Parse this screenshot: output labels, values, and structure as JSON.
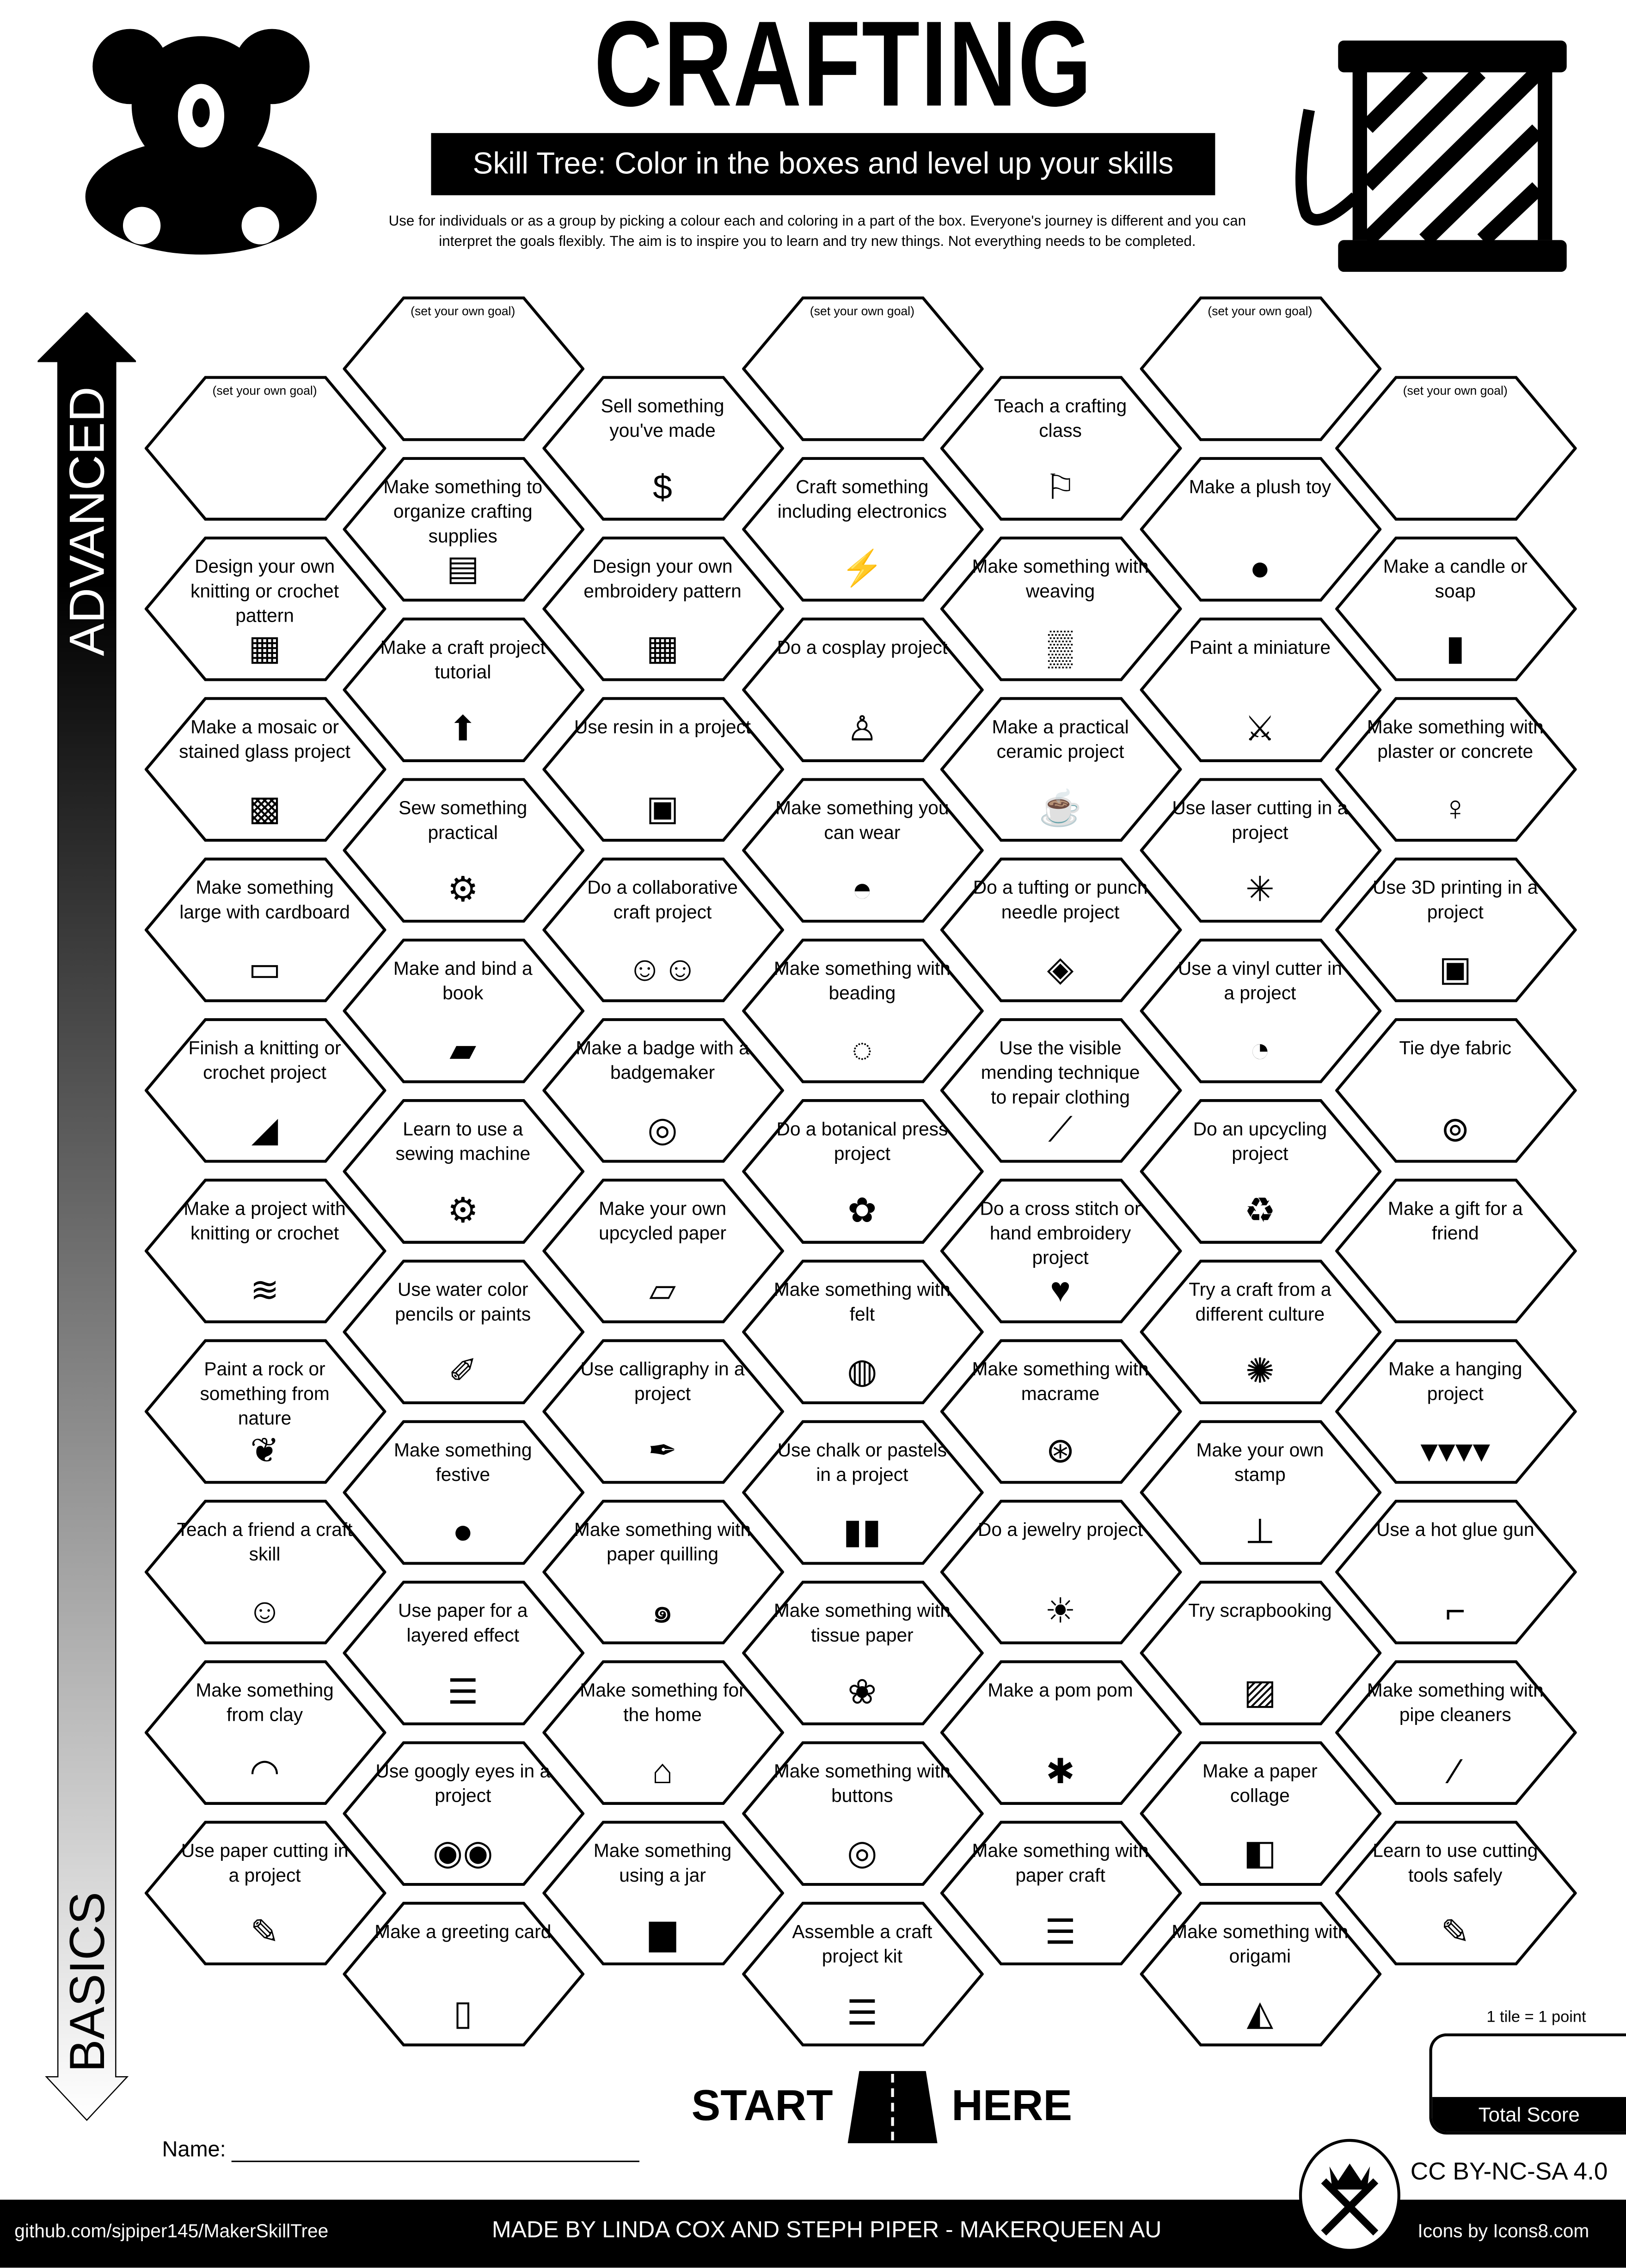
{
  "header": {
    "title": "CRAFTING",
    "subtitle": "Skill Tree:  Color in the boxes and level up your skills",
    "description_line1": "Use for individuals or as a group by picking a colour each and coloring in a part of the box.  Everyone's journey is different and you can",
    "description_line2": "interpret the goals flexibly.  The aim is to inspire you to learn and try new things. Not everything needs to be completed.",
    "left_icon": "teddy-bear-icon",
    "right_icon": "thread-spool-icon"
  },
  "axis": {
    "top_label": "ADVANCED",
    "bottom_label": "BASICS"
  },
  "goal_text": "(set your own goal)",
  "columns": [
    [
      {
        "goal": true
      },
      {
        "label": "Design your own knitting or crochet pattern",
        "icon": "pattern-ruler-icon",
        "glyph": "▦"
      },
      {
        "label": "Make a mosaic or stained glass project",
        "icon": "mosaic-icon",
        "glyph": "▩"
      },
      {
        "label": "Make something large with cardboard",
        "icon": "cardboard-icon",
        "glyph": "▭"
      },
      {
        "label": "Finish a knitting or crochet project",
        "icon": "knitting-needle-icon",
        "glyph": "◢"
      },
      {
        "label": "Make a project with knitting or crochet",
        "icon": "knitting-icon",
        "glyph": "≋"
      },
      {
        "label": "Paint a rock or something from nature",
        "icon": "leaf-icon",
        "glyph": "❦"
      },
      {
        "label": "Teach a friend a craft skill",
        "icon": "teaching-friends-icon",
        "glyph": "☺"
      },
      {
        "label": "Make something from clay",
        "icon": "rainbow-clay-icon",
        "glyph": "◠"
      },
      {
        "label": "Use paper cutting in a project",
        "icon": "craft-knife-icon",
        "glyph": "✎"
      }
    ],
    [
      {
        "goal": true
      },
      {
        "label": "Make something to organize crafting supplies",
        "icon": "organizing-person-icon",
        "glyph": "▤"
      },
      {
        "label": "Make a craft project tutorial",
        "icon": "upload-arrow-icon",
        "glyph": "⬆"
      },
      {
        "label": "Sew something practical",
        "icon": "sewing-machine-icon",
        "glyph": "⚙"
      },
      {
        "label": "Make and bind a book",
        "icon": "book-icon",
        "glyph": "▰"
      },
      {
        "label": "Learn to use a sewing machine",
        "icon": "sewing-machine-icon",
        "glyph": "⚙"
      },
      {
        "label": "Use water color pencils or paints",
        "icon": "paint-brush-icon",
        "glyph": "✐"
      },
      {
        "label": "Make something festive",
        "icon": "ornament-icon",
        "glyph": "●"
      },
      {
        "label": "Use paper for a layered effect",
        "icon": "paper-stack-icon",
        "glyph": "☰"
      },
      {
        "label": "Use googly eyes in a project",
        "icon": "googly-eyes-icon",
        "glyph": "◉◉"
      },
      {
        "label": "Make a greeting card",
        "icon": "greeting-card-icon",
        "glyph": "▯"
      }
    ],
    [
      {
        "label": "Sell something you've made",
        "icon": "money-bag-icon",
        "glyph": "$"
      },
      {
        "label": "Design your own embroidery pattern",
        "icon": "pattern-ruler-icon",
        "glyph": "▦"
      },
      {
        "label": "Use resin in a project",
        "icon": "resin-bucket-icon",
        "glyph": "▣"
      },
      {
        "label": "Do a collaborative craft project",
        "icon": "collaboration-icon",
        "glyph": "☺☺"
      },
      {
        "label": "Make a badge with a badgemaker",
        "icon": "badge-icon",
        "glyph": "◎"
      },
      {
        "label": "Make your own upcycled paper",
        "icon": "scroll-icon",
        "glyph": "▱"
      },
      {
        "label": "Use calligraphy in a project",
        "icon": "fountain-pen-icon",
        "glyph": "✒"
      },
      {
        "label": "Make something with paper quilling",
        "icon": "triskelion-icon",
        "glyph": "๑"
      },
      {
        "label": "Make something for the home",
        "icon": "house-icon",
        "glyph": "⌂"
      },
      {
        "label": "Make something using a jar",
        "icon": "jar-icon",
        "glyph": "▆"
      }
    ],
    [
      {
        "goal": true
      },
      {
        "label": "Craft something including electronics",
        "icon": "led-lightning-icon",
        "glyph": "⚡"
      },
      {
        "label": "Do a cosplay project",
        "icon": "dress-form-icon",
        "glyph": "♙"
      },
      {
        "label": "Make something you can wear",
        "icon": "hat-icon",
        "glyph": "◓"
      },
      {
        "label": "Make something with beading",
        "icon": "beads-icon",
        "glyph": "◌"
      },
      {
        "label": "Do a botanical press project",
        "icon": "flower-icon",
        "glyph": "✿"
      },
      {
        "label": "Make something with felt",
        "icon": "felt-roll-icon",
        "glyph": "◍"
      },
      {
        "label": "Use chalk or pastels in a project",
        "icon": "chalk-icon",
        "glyph": "▮▮"
      },
      {
        "label": "Make something with tissue paper",
        "icon": "lotus-icon",
        "glyph": "❀"
      },
      {
        "label": "Make something with buttons",
        "icon": "button-icon",
        "glyph": "◎"
      },
      {
        "label": "Assemble a craft project kit",
        "icon": "kit-stack-icon",
        "glyph": "☰"
      }
    ],
    [
      {
        "label": "Teach a crafting class",
        "icon": "teacher-board-icon",
        "glyph": "⚐"
      },
      {
        "label": "Make something with weaving",
        "icon": "weaving-icon",
        "glyph": "▒"
      },
      {
        "label": "Make a practical ceramic project",
        "icon": "mug-icon",
        "glyph": "☕"
      },
      {
        "label": "Do a tufting or punch needle project",
        "icon": "rug-icon",
        "glyph": "◈"
      },
      {
        "label": "Use the visible mending technique to repair clothing",
        "icon": "needle-thread-icon",
        "glyph": "⟋"
      },
      {
        "label": "Do a cross stitch or hand embroidery project",
        "icon": "cross-stitch-heart-icon",
        "glyph": "♥"
      },
      {
        "label": "Make something with macrame",
        "icon": "dreamcatcher-icon",
        "glyph": "⊛"
      },
      {
        "label": "Do a jewelry project",
        "icon": "sun-icon",
        "glyph": "☀"
      },
      {
        "label": "Make a pom pom",
        "icon": "pom-pom-icon",
        "glyph": "✱"
      },
      {
        "label": "Make something with paper craft",
        "icon": "paper-craft-icon",
        "glyph": "☰"
      }
    ],
    [
      {
        "goal": true
      },
      {
        "label": "Make a plush toy",
        "icon": "teddy-bear-icon",
        "glyph": "●"
      },
      {
        "label": "Paint a miniature",
        "icon": "knight-icon",
        "glyph": "⚔"
      },
      {
        "label": "Use laser cutting in a project",
        "icon": "laser-icon",
        "glyph": "✳"
      },
      {
        "label": "Use a vinyl cutter in a project",
        "icon": "sticker-icon",
        "glyph": "◔"
      },
      {
        "label": "Do an upcycling project",
        "icon": "recycle-icon",
        "glyph": "♻"
      },
      {
        "label": "Try a craft from a different culture",
        "icon": "mandala-icon",
        "glyph": "✺"
      },
      {
        "label": "Make your own stamp",
        "icon": "stamp-icon",
        "glyph": "⊥"
      },
      {
        "label": "Try scrapbooking",
        "icon": "picture-icon",
        "glyph": "▨"
      },
      {
        "label": "Make a paper collage",
        "icon": "collage-icon",
        "glyph": "◧"
      },
      {
        "label": "Make something with origami",
        "icon": "origami-icon",
        "glyph": "◭"
      }
    ],
    [
      {
        "goal": true
      },
      {
        "label": "Make a candle or soap",
        "icon": "candle-icon",
        "glyph": "▮"
      },
      {
        "label": "Make something with plaster or concrete",
        "icon": "statue-icon",
        "glyph": "♀"
      },
      {
        "label": "Use 3D printing in a project",
        "icon": "3d-printer-icon",
        "glyph": "▣"
      },
      {
        "label": "Tie dye fabric",
        "icon": "swirl-icon",
        "glyph": "⊚"
      },
      {
        "label": "Make a gift for a friend",
        "icon": "gift-bow-icon",
        "glyph": ""
      },
      {
        "label": "Make a hanging project",
        "icon": "bunting-icon",
        "glyph": "▾▾▾▾"
      },
      {
        "label": "Use a hot glue gun",
        "icon": "glue-gun-icon",
        "glyph": "⌐"
      },
      {
        "label": "Make something with pipe cleaners",
        "icon": "pipe-cleaner-icon",
        "glyph": "⁄"
      },
      {
        "label": "Learn to use cutting tools safely",
        "icon": "craft-knife-icon",
        "glyph": "✎"
      }
    ]
  ],
  "start": {
    "left": "START",
    "right": "HERE",
    "icon": "road-icon"
  },
  "name_label": "Name:",
  "score": {
    "note": "1 tile = 1 point",
    "label": "Total Score"
  },
  "license": "CC BY-NC-SA 4.0",
  "footer": {
    "repo": "github.com/sjpiper145/MakerSkillTree",
    "credits": "MADE BY LINDA COX  AND STEPH PIPER  -  MAKERQUEEN AU",
    "icons_credit": "Icons by Icons8.com"
  }
}
